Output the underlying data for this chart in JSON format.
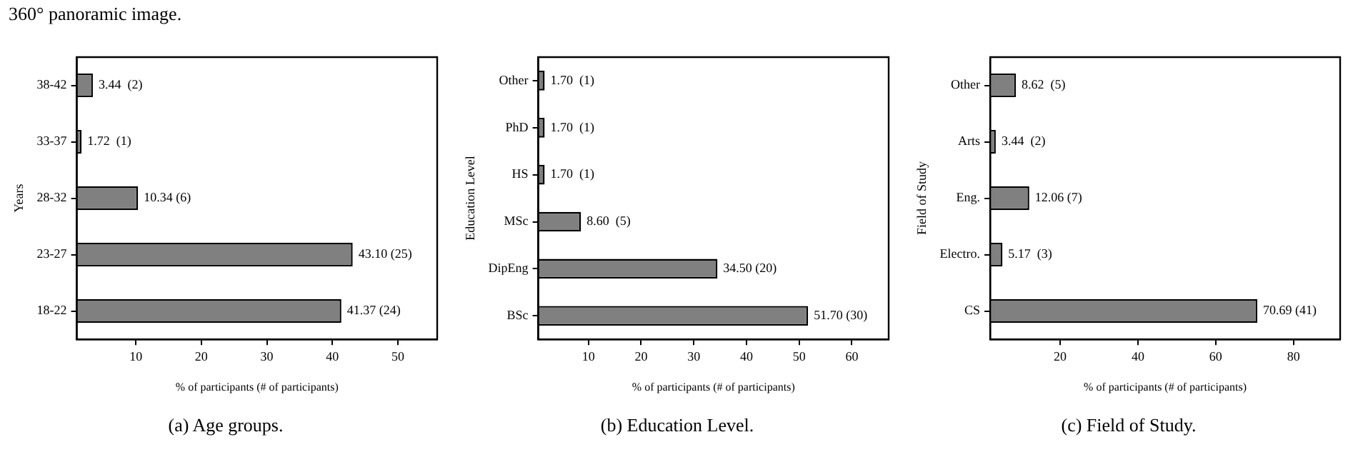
{
  "chart_data": [
    {
      "type": "bar",
      "orientation": "horizontal",
      "title": "(a) Age groups.",
      "xlabel": "% of participants (# of participants)",
      "ylabel": "Years",
      "annotations": [
        "360° panoramic image."
      ],
      "categories": [
        "38-42",
        "33-37",
        "28-32",
        "23-27",
        "18-22"
      ],
      "values": [
        3.44,
        1.72,
        10.34,
        43.1,
        41.37
      ],
      "value_labels": [
        "3.44  (2)",
        "1.72  (1)",
        "10.34 (6)",
        "43.10 (25)",
        "41.37 (24)"
      ],
      "color": "#808080",
      "xlim": [
        1,
        56
      ],
      "xticks": [
        10,
        20,
        30,
        40,
        50
      ]
    },
    {
      "type": "bar",
      "orientation": "horizontal",
      "title": "(b) Education Level.",
      "xlabel": "% of participants (# of participants)",
      "ylabel": "Education Level",
      "categories": [
        "Other",
        "PhD",
        "HS",
        "MSc",
        "DipEng",
        "BSc"
      ],
      "values": [
        1.7,
        1.7,
        1.7,
        8.6,
        34.5,
        51.7
      ],
      "value_labels": [
        "1.70  (1)",
        "1.70  (1)",
        "1.70  (1)",
        "8.60  (5)",
        "34.50 (20)",
        "51.70 (30)"
      ],
      "color": "#808080",
      "xlim": [
        0.5,
        67
      ],
      "xticks": [
        10,
        20,
        30,
        40,
        50,
        60
      ]
    },
    {
      "type": "bar",
      "orientation": "horizontal",
      "title": "(c) Field of Study.",
      "xlabel": "% of participants (# of participants)",
      "ylabel": "Field of Study",
      "categories": [
        "Other",
        "Arts",
        "Eng.",
        "Electro.",
        "CS"
      ],
      "values": [
        8.62,
        3.44,
        12.06,
        5.17,
        70.69
      ],
      "value_labels": [
        "8.62  (5)",
        "3.44  (2)",
        "12.06 (7)",
        "5.17  (3)",
        "70.69 (41)"
      ],
      "color": "#808080",
      "xlim": [
        2,
        92
      ],
      "xticks": [
        20,
        40,
        60,
        80
      ]
    }
  ]
}
